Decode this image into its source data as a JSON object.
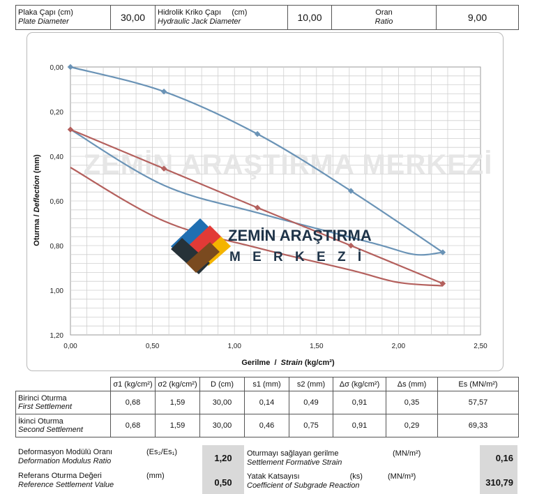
{
  "params": {
    "plate_label_tr": "Plaka Çapı  (cm)",
    "plate_label_en": "Plate Diameter",
    "plate_value": "30,00",
    "jack_label_tr": "Hidrolik Kriko Çapı",
    "jack_unit": "(cm)",
    "jack_label_en": "Hydraulic Jack Diameter",
    "jack_value": "10,00",
    "ratio_label_tr": "Oran",
    "ratio_label_en": "Ratio",
    "ratio_value": "9,00"
  },
  "watermark": {
    "background_text": "ZEMİN ARAŞTIRMA MERKEZİ",
    "logo_line1": "ZEMİN ARAŞTIRMA",
    "logo_line2": "M E R K E Z İ"
  },
  "chart_data": {
    "type": "line",
    "xlabel_tr": "Gerilme",
    "xlabel_sep": "  /  ",
    "xlabel_en": "Strain",
    "xlabel_unit": " (kg/cm²)",
    "ylabel_tr": "Oturma",
    "ylabel_sep": " / ",
    "ylabel_en": "Deflection",
    "ylabel_unit": " (mm)",
    "xlim": [
      0,
      2.5
    ],
    "ylim": [
      0,
      1.2
    ],
    "y_inverted": true,
    "grid": true,
    "x_ticks": [
      "0,00",
      "0,50",
      "1,00",
      "1,50",
      "2,00",
      "2,50"
    ],
    "y_ticks": [
      "0,00",
      "0,20",
      "0,40",
      "0,60",
      "0,80",
      "1,00",
      "1,20"
    ],
    "colors": {
      "first": "#6a93b6",
      "second": "#b4605d"
    },
    "series": [
      {
        "id": "first",
        "load": [
          [
            0,
            0
          ],
          [
            0.57,
            0.11
          ],
          [
            1.14,
            0.3
          ],
          [
            1.71,
            0.555
          ],
          [
            2.27,
            0.83
          ]
        ],
        "unload": [
          [
            2.27,
            0.83
          ],
          [
            2.1,
            0.84
          ],
          [
            1.85,
            0.79
          ],
          [
            1.15,
            0.655
          ],
          [
            0.57,
            0.53
          ],
          [
            0,
            0.28
          ]
        ]
      },
      {
        "id": "second",
        "load": [
          [
            0,
            0.28
          ],
          [
            0.57,
            0.455
          ],
          [
            1.14,
            0.63
          ],
          [
            1.71,
            0.8
          ],
          [
            2.27,
            0.97
          ]
        ],
        "unload": [
          [
            2.27,
            0.98
          ],
          [
            2.0,
            0.965
          ],
          [
            1.71,
            0.91
          ],
          [
            1.14,
            0.81
          ],
          [
            0.57,
            0.69
          ],
          [
            0,
            0.45
          ]
        ]
      }
    ]
  },
  "results": {
    "headers": [
      "σ1 (kg/cm²)",
      "σ2 (kg/cm²)",
      "D (cm)",
      "s1 (mm)",
      "s2 (mm)",
      "Δσ (kg/cm²)",
      "Δs (mm)",
      "Es (MN/m²)"
    ],
    "rows": [
      {
        "label_tr": "Birinci Oturma",
        "label_en": "First Settlement",
        "values": [
          "0,68",
          "1,59",
          "30,00",
          "0,14",
          "0,49",
          "0,91",
          "0,35",
          "57,57"
        ]
      },
      {
        "label_tr": "İkinci Oturma",
        "label_en": "Second Settlement",
        "values": [
          "0,68",
          "1,59",
          "30,00",
          "0,46",
          "0,75",
          "0,91",
          "0,29",
          "69,33"
        ]
      }
    ]
  },
  "summary": {
    "dmr_tr": "Deformasyon Modülü Oranı",
    "dmr_en": "Deformation Modulus Ratio",
    "dmr_unit": "(Es₂/Es₁)",
    "dmr_value": "1,20",
    "rsv_tr": "Referans Oturma Değeri",
    "rsv_en": "Reference Settlement Value",
    "rsv_unit": "(mm)",
    "rsv_value": "0,50",
    "sfs_tr": "Oturmayı sağlayan gerilme",
    "sfs_en": "Settlement Formative Strain",
    "sfs_unit": "(MN/m²)",
    "sfs_value": "0,16",
    "csr_tr": "Yatak Katsayısı",
    "csr_sym": "(ks)",
    "csr_en": "Coefficient  of Subgrade Reaction",
    "csr_unit": "(MN/m³)",
    "csr_value": "310,79"
  }
}
